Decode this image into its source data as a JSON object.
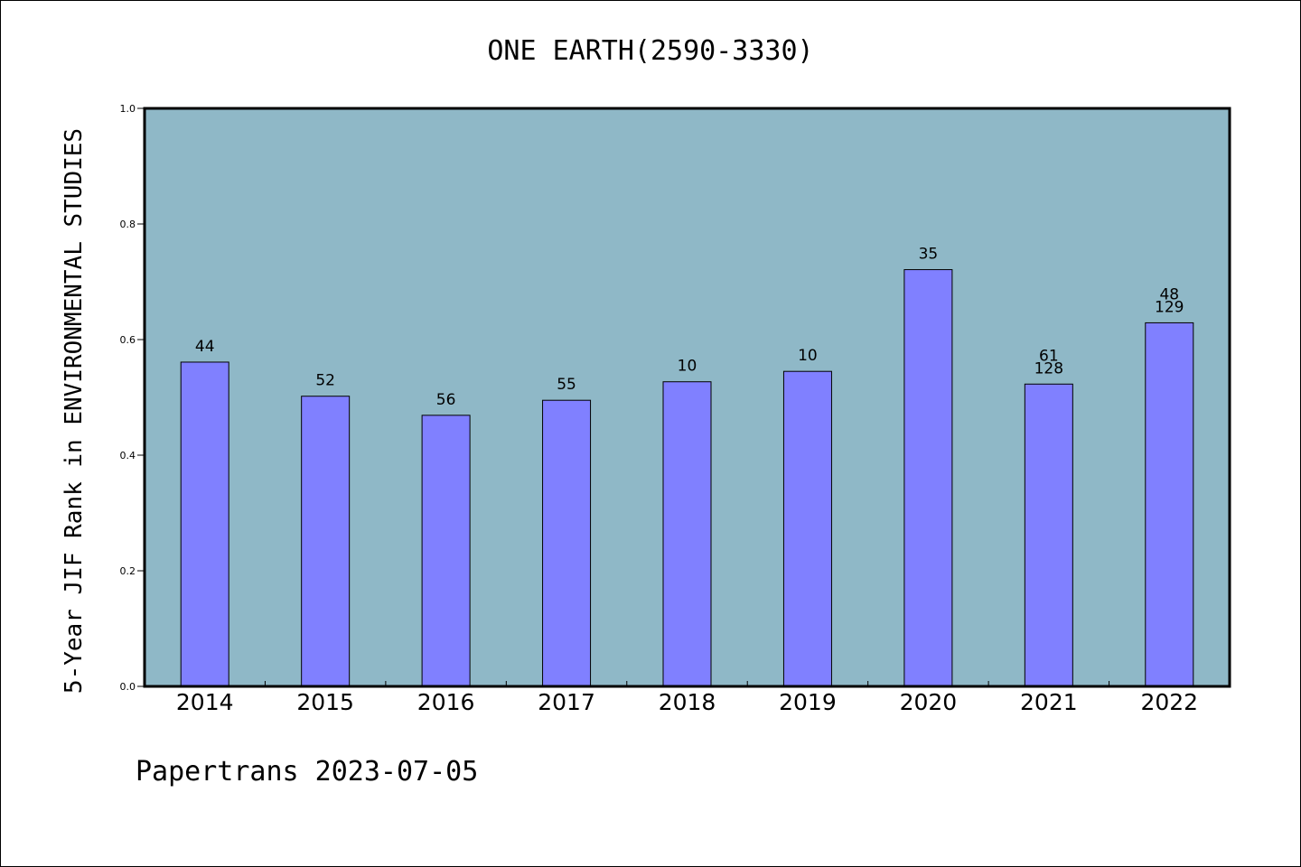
{
  "chart_data": {
    "type": "bar",
    "title": "ONE EARTH(2590-3330)",
    "ylabel": "5-Year JIF Rank in ENVIRONMENTAL STUDIES",
    "xlabel": "",
    "ylim": [
      0,
      1.0
    ],
    "yticks": [
      "0.0",
      "0.2",
      "0.4",
      "0.6",
      "0.8",
      "1.0"
    ],
    "categories": [
      "2014",
      "2015",
      "2016",
      "2017",
      "2018",
      "2019",
      "2020",
      "2021",
      "2022"
    ],
    "values": [
      0.561,
      0.502,
      0.469,
      0.495,
      0.527,
      0.545,
      0.721,
      0.523,
      0.629
    ],
    "labels": [
      [
        "44"
      ],
      [
        "52"
      ],
      [
        "56"
      ],
      [
        "55"
      ],
      [
        "10"
      ],
      [
        "10"
      ],
      [
        "35"
      ],
      [
        "61",
        "128"
      ],
      [
        "48",
        "129"
      ]
    ],
    "grid": false,
    "legend": "none",
    "colors": {
      "plot_bg": "#8fb8c7",
      "bar": "#8080ff",
      "axis": "#000000"
    }
  },
  "footer": "Papertrans 2023-07-05"
}
